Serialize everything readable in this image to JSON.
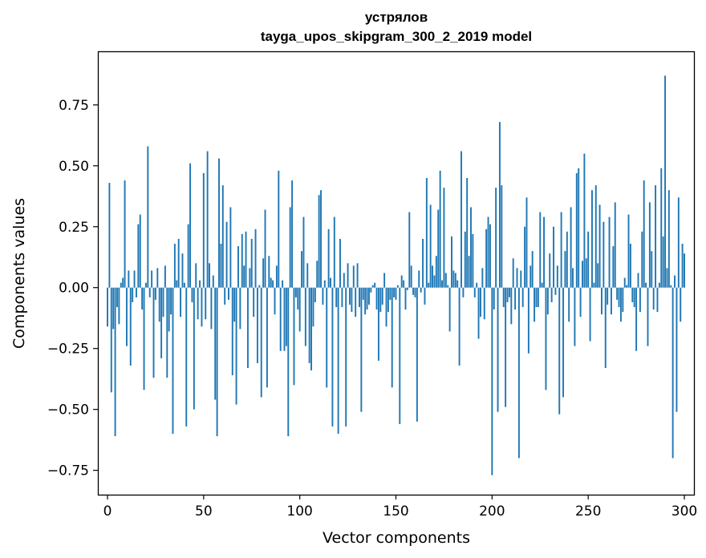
{
  "chart_data": {
    "type": "bar",
    "title": "устрялов",
    "subtitle": "tayga_upos_skipgram_300_2_2019 model",
    "xlabel": "Vector components",
    "ylabel": "Components values",
    "xlim": [
      -5,
      305
    ],
    "ylim": [
      -0.85,
      0.97
    ],
    "xticks": [
      0,
      50,
      100,
      150,
      200,
      250,
      300
    ],
    "yticks": [
      -0.75,
      -0.5,
      -0.25,
      0.0,
      0.25,
      0.5,
      0.75
    ],
    "ytick_labels": [
      "−0.75",
      "−0.50",
      "−0.25",
      "0.00",
      "0.25",
      "0.50",
      "0.75"
    ],
    "grid": false,
    "bar_color": "#1f77b4",
    "values": [
      -0.16,
      0.43,
      -0.43,
      -0.17,
      -0.61,
      -0.08,
      -0.15,
      0.02,
      0.04,
      0.44,
      -0.24,
      0.07,
      -0.32,
      -0.06,
      0.07,
      -0.04,
      0.26,
      0.3,
      -0.09,
      -0.42,
      0.02,
      0.58,
      -0.04,
      0.07,
      -0.37,
      -0.05,
      0.08,
      -0.14,
      -0.29,
      -0.12,
      0.09,
      -0.37,
      -0.18,
      -0.11,
      -0.6,
      0.18,
      0.03,
      0.2,
      -0.12,
      0.14,
      0.02,
      -0.57,
      0.26,
      0.51,
      -0.06,
      -0.5,
      0.1,
      -0.13,
      0.03,
      -0.16,
      0.47,
      -0.13,
      0.56,
      0.1,
      -0.17,
      0.05,
      -0.46,
      -0.61,
      0.53,
      0.18,
      0.42,
      -0.07,
      0.27,
      -0.05,
      0.33,
      -0.36,
      -0.14,
      -0.48,
      0.17,
      -0.17,
      0.22,
      0.09,
      0.23,
      -0.33,
      0.08,
      0.2,
      -0.12,
      0.24,
      -0.31,
      0.01,
      -0.45,
      0.12,
      0.32,
      -0.41,
      0.13,
      0.04,
      0.03,
      -0.11,
      0.09,
      0.48,
      -0.26,
      0.03,
      -0.26,
      -0.24,
      -0.61,
      0.33,
      0.44,
      -0.4,
      -0.04,
      -0.09,
      -0.18,
      0.15,
      0.29,
      -0.24,
      0.1,
      -0.31,
      -0.34,
      -0.16,
      -0.06,
      0.11,
      0.38,
      0.4,
      -0.07,
      0.03,
      -0.41,
      0.24,
      0.04,
      -0.57,
      0.29,
      -0.08,
      -0.6,
      0.2,
      -0.08,
      0.06,
      -0.57,
      0.1,
      -0.07,
      -0.1,
      0.09,
      -0.12,
      0.1,
      -0.08,
      -0.51,
      -0.05,
      -0.11,
      -0.09,
      -0.07,
      -0.02,
      0.01,
      0.02,
      -0.09,
      -0.3,
      -0.1,
      -0.07,
      0.06,
      -0.16,
      -0.1,
      -0.05,
      -0.41,
      -0.04,
      -0.05,
      0.01,
      -0.56,
      0.05,
      0.03,
      -0.09,
      -0.01,
      0.31,
      0.09,
      -0.03,
      -0.04,
      -0.55,
      0.07,
      -0.02,
      0.2,
      -0.07,
      0.45,
      0.02,
      0.34,
      0.09,
      0.05,
      0.13,
      0.32,
      0.48,
      0.03,
      0.41,
      0.06,
      0.01,
      -0.18,
      0.21,
      0.07,
      0.06,
      0.03,
      -0.32,
      0.56,
      -0.04,
      0.23,
      0.45,
      0.13,
      0.33,
      0.22,
      -0.04,
      0.02,
      -0.21,
      -0.12,
      0.08,
      -0.13,
      0.24,
      0.29,
      0.26,
      -0.77,
      -0.09,
      0.41,
      -0.51,
      0.68,
      0.42,
      -0.08,
      -0.49,
      -0.06,
      -0.04,
      -0.15,
      0.12,
      -0.09,
      0.08,
      -0.7,
      0.07,
      -0.08,
      0.25,
      0.37,
      -0.27,
      0.09,
      0.15,
      -0.14,
      -0.08,
      -0.08,
      0.31,
      0.02,
      0.29,
      -0.42,
      -0.11,
      0.14,
      -0.06,
      0.25,
      -0.03,
      0.09,
      -0.52,
      0.31,
      -0.45,
      0.15,
      0.23,
      -0.14,
      0.33,
      0.08,
      -0.24,
      0.47,
      0.49,
      -0.12,
      0.11,
      0.55,
      0.12,
      0.23,
      -0.22,
      0.4,
      0.02,
      0.42,
      0.1,
      0.34,
      -0.11,
      0.27,
      -0.33,
      -0.07,
      0.29,
      -0.11,
      0.17,
      0.35,
      -0.05,
      -0.08,
      -0.14,
      -0.1,
      0.04,
      0.01,
      0.3,
      0.18,
      -0.06,
      -0.08,
      -0.26,
      0.06,
      -0.1,
      0.23,
      0.44,
      0.02,
      -0.24,
      0.35,
      0.15,
      -0.09,
      0.42,
      -0.1,
      0.02,
      0.49,
      0.21,
      0.87,
      0.08,
      0.4,
      0.01,
      -0.7,
      0.05,
      -0.51,
      0.37,
      -0.14,
      0.18,
      0.14
    ]
  }
}
